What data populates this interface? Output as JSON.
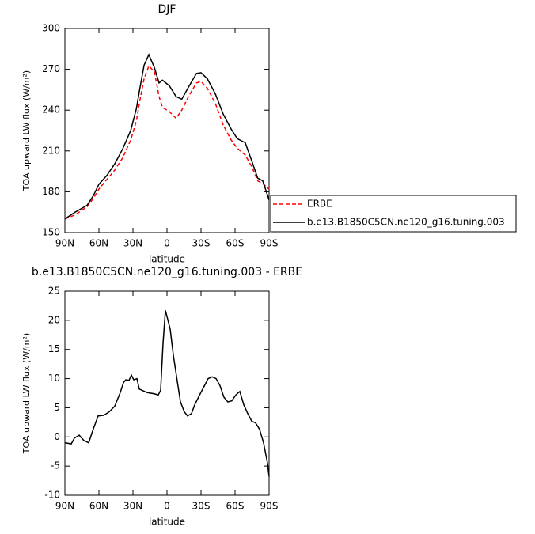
{
  "chart_data": [
    {
      "type": "line",
      "title": "DJF",
      "ylabel": "TOA upward LW flux (W/m²)",
      "xlabel": "latitude",
      "x": [
        90,
        81,
        70.5,
        65,
        60,
        53,
        46,
        39,
        32,
        27,
        23.7,
        20.2,
        16,
        11,
        7,
        4,
        -2,
        -8,
        -13,
        -19,
        -26,
        -30,
        -35.6,
        -42.6,
        -49.6,
        -56.6,
        -62,
        -69,
        -75,
        -80,
        -84.4,
        -90
      ],
      "series": [
        {
          "name": "ERBE",
          "color": "#ff0000",
          "dashed": true,
          "values": [
            160,
            163,
            169,
            175,
            182,
            189,
            196,
            205,
            218,
            232,
            248,
            263,
            272.5,
            268,
            250,
            242,
            239,
            234,
            240,
            250,
            260,
            261,
            256,
            245,
            229,
            218,
            212,
            207,
            198,
            188,
            186,
            182
          ]
        },
        {
          "name": "b.e13.B1850C5CN.ne120_g16.tuning.003",
          "color": "#000000",
          "dashed": false,
          "values": [
            160,
            165,
            170,
            177,
            185.5,
            192,
            200.6,
            211.6,
            225,
            241,
            257,
            273,
            280.8,
            271,
            260,
            262,
            258,
            250,
            248,
            257,
            267,
            267.5,
            263,
            252,
            237,
            226,
            219,
            216,
            202,
            190,
            188,
            174
          ]
        }
      ],
      "xlim": [
        90,
        -90
      ],
      "xticks": [
        {
          "value": 90,
          "label": "90N"
        },
        {
          "value": 60,
          "label": "60N"
        },
        {
          "value": 30,
          "label": "30N"
        },
        0,
        {
          "value": -30,
          "label": "30S"
        },
        {
          "value": -60,
          "label": "60S"
        },
        {
          "value": -90,
          "label": "90S"
        }
      ],
      "ylim": [
        150,
        300
      ],
      "yticks": [
        150,
        180,
        210,
        240,
        270,
        300
      ],
      "legend": "right"
    },
    {
      "type": "line",
      "title": "b.e13.B1850C5CN.ne120_g16.tuning.003 - ERBE",
      "ylabel": "TOA upward LW flux (W/m²)",
      "xlabel": "latitude",
      "x": [
        90,
        84.4,
        81.6,
        77.4,
        73.3,
        69,
        65.6,
        60.7,
        55.8,
        50.9,
        46,
        41.2,
        38.4,
        36.3,
        33.5,
        31.4,
        29.3,
        26.5,
        24.4,
        17.4,
        11.2,
        7.7,
        5.6,
        3.5,
        1.4,
        -2.8,
        -5.6,
        -9.1,
        -11.9,
        -15.3,
        -18.1,
        -21.6,
        -24.4,
        -29.3,
        -32.8,
        -36.3,
        -39.8,
        -43.3,
        -46.7,
        -50.2,
        -53.7,
        -57.2,
        -60.7,
        -64.2,
        -67.7,
        -71.2,
        -74.7,
        -78.1,
        -81.6,
        -85.1,
        -88.6,
        -90
      ],
      "series": [
        {
          "name": null,
          "color": "#000000",
          "dashed": false,
          "values": [
            -1,
            -1.2,
            -0.2,
            0.3,
            -0.6,
            -1,
            1,
            3.6,
            3.7,
            4.3,
            5.3,
            7.6,
            9.3,
            9.8,
            9.7,
            10.6,
            9.8,
            10,
            8.2,
            7.6,
            7.4,
            7.2,
            8,
            16,
            21.7,
            18.5,
            14,
            9.5,
            6,
            4.3,
            3.6,
            4,
            5.5,
            7.4,
            8.7,
            10,
            10.3,
            10,
            8.8,
            6.8,
            6,
            6.2,
            7.2,
            7.8,
            5.5,
            4,
            2.7,
            2.4,
            1.3,
            -1,
            -4.5,
            -6.8
          ]
        }
      ],
      "xlim": [
        90,
        -90
      ],
      "xticks": [
        {
          "value": 90,
          "label": "90N"
        },
        {
          "value": 60,
          "label": "60N"
        },
        {
          "value": 30,
          "label": "30N"
        },
        0,
        {
          "value": -30,
          "label": "30S"
        },
        {
          "value": -60,
          "label": "60S"
        },
        {
          "value": -90,
          "label": "90S"
        }
      ],
      "ylim": [
        -10,
        25
      ],
      "yticks": [
        -10,
        -5,
        0,
        5,
        10,
        15,
        20,
        25
      ]
    }
  ]
}
